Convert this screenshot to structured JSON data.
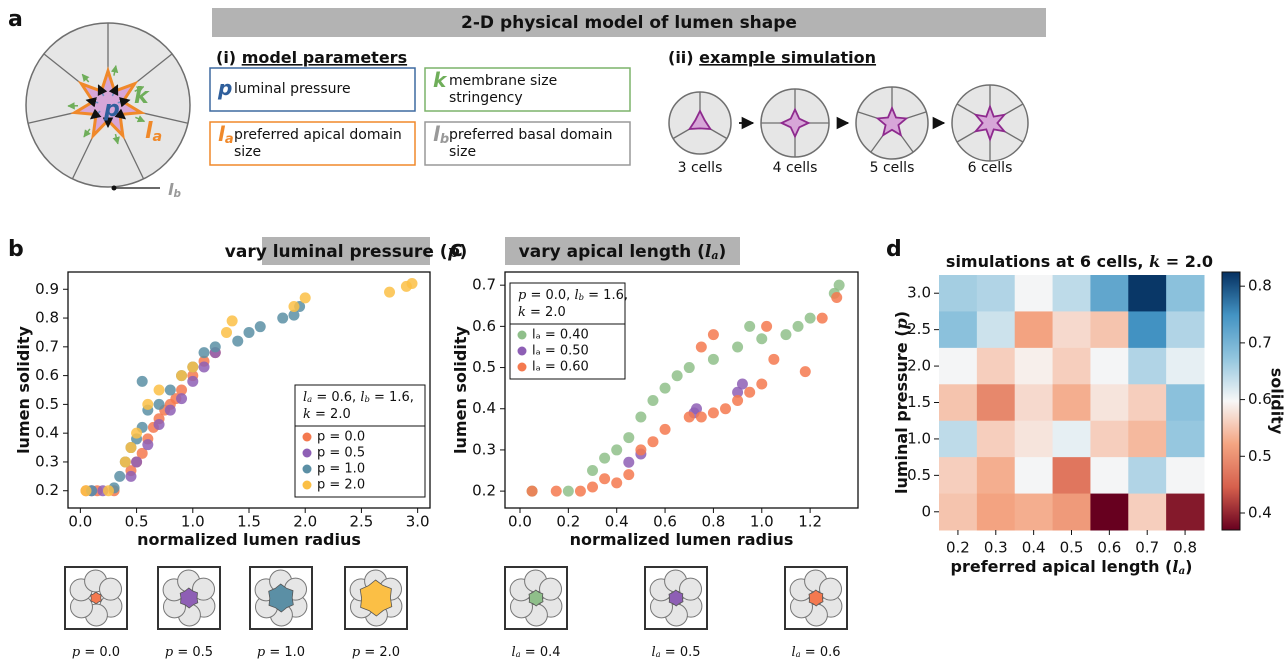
{
  "diagram": {
    "label": "a",
    "title": "2-D physical model of lumen shape",
    "params_heading": [
      {
        "text": "(i) "
      },
      {
        "text": "model parameters",
        "style": "underline"
      }
    ],
    "params": [
      {
        "symbol": [
          {
            "text": "p",
            "style": "bold-italic",
            "color": "#2f5f9c"
          }
        ],
        "lines": [
          "luminal pressure"
        ],
        "color": "#3e6aa0"
      },
      {
        "symbol": [
          {
            "text": "k",
            "style": "bold-italic",
            "color": "#6fae5a"
          }
        ],
        "lines": [
          "membrane size",
          "stringency"
        ],
        "color": "#7cb36a"
      },
      {
        "symbol": [
          {
            "text": "l",
            "style": "bold-italic",
            "color": "#f0892a"
          },
          {
            "text": "a",
            "style": "sub bold-italic",
            "color": "#f0892a"
          }
        ],
        "lines": [
          "preferred apical domain",
          "size"
        ],
        "color": "#f0892a"
      },
      {
        "symbol": [
          {
            "text": "l",
            "style": "bold-italic",
            "color": "#999999"
          },
          {
            "text": "b",
            "style": "sub bold-italic",
            "color": "#999999"
          }
        ],
        "lines": [
          "preferred basal domain",
          "size"
        ],
        "color": "#999999"
      }
    ],
    "sim_heading": [
      {
        "text": "(ii) "
      },
      {
        "text": "example simulation",
        "style": "underline"
      }
    ],
    "sim_steps": [
      "3 cells",
      "4 cells",
      "5 cells",
      "6 cells"
    ]
  },
  "chart_data": [
    {
      "type": "scatter",
      "label": "b",
      "title": [
        {
          "text": "vary luminal pressure ("
        },
        {
          "text": "p",
          "style": "italic serif"
        },
        {
          "text": ")"
        }
      ],
      "x_label": [
        {
          "text": "normalized lumen radius"
        }
      ],
      "y_label": [
        {
          "text": "lumen solidity"
        }
      ],
      "xlim": [
        -0.11,
        3.11
      ],
      "ylim": [
        0.14,
        0.96
      ],
      "xticks": [
        {
          "value": 0,
          "label": "0.0"
        },
        0.5,
        {
          "value": 1,
          "label": "1.0"
        },
        1.5,
        {
          "value": 2,
          "label": "2.0"
        },
        2.5,
        {
          "value": 3,
          "label": "3.0"
        }
      ],
      "yticks": [
        0.2,
        0.3,
        0.4,
        0.5,
        0.6,
        0.7,
        0.8,
        0.9
      ],
      "legend_position": "lower right",
      "legend_title": [
        [
          {
            "text": "l",
            "style": "italic serif"
          },
          {
            "text": "a",
            "style": "sub italic serif"
          },
          {
            "text": " = 0.6, "
          },
          {
            "text": "l",
            "style": "italic serif"
          },
          {
            "text": "b",
            "style": "sub italic serif"
          },
          {
            "text": " = 1.6,"
          }
        ],
        [
          {
            "text": "k",
            "style": "italic serif"
          },
          {
            "text": " = 2.0"
          }
        ]
      ],
      "series": [
        {
          "name": "p = 0.0",
          "color": "#f4794f",
          "x": [
            0.05,
            0.15,
            0.3,
            0.45,
            0.5,
            0.55,
            0.6,
            0.65,
            0.7,
            0.75,
            0.8,
            0.85,
            0.9,
            1.0,
            1.1,
            1.2
          ],
          "values": [
            0.2,
            0.2,
            0.2,
            0.27,
            0.3,
            0.33,
            0.38,
            0.42,
            0.45,
            0.48,
            0.5,
            0.52,
            0.55,
            0.6,
            0.65,
            0.68
          ]
        },
        {
          "name": "p = 0.5",
          "color": "#8e5fb5",
          "x": [
            0.1,
            0.2,
            0.45,
            0.5,
            0.6,
            0.7,
            0.8,
            0.9,
            1.0,
            1.1,
            1.2
          ],
          "values": [
            0.2,
            0.2,
            0.25,
            0.3,
            0.36,
            0.43,
            0.48,
            0.52,
            0.58,
            0.63,
            0.68
          ]
        },
        {
          "name": "p = 1.0",
          "color": "#5b8fa5",
          "x": [
            0.1,
            0.3,
            0.35,
            0.4,
            0.45,
            0.5,
            0.55,
            0.6,
            0.55,
            0.7,
            0.8,
            0.9,
            1.0,
            1.1,
            1.2,
            1.4,
            1.5,
            1.6,
            1.8,
            1.9,
            1.95
          ],
          "values": [
            0.2,
            0.21,
            0.25,
            0.3,
            0.35,
            0.38,
            0.42,
            0.48,
            0.58,
            0.5,
            0.55,
            0.6,
            0.63,
            0.68,
            0.7,
            0.72,
            0.75,
            0.77,
            0.8,
            0.81,
            0.84
          ]
        },
        {
          "name": "p = 2.0",
          "color": "#fbbf45",
          "x": [
            0.05,
            0.25,
            0.4,
            0.45,
            0.5,
            0.6,
            0.7,
            0.9,
            1.0,
            1.3,
            1.35,
            1.9,
            2.0,
            2.75,
            2.9,
            2.95
          ],
          "values": [
            0.2,
            0.2,
            0.3,
            0.35,
            0.4,
            0.5,
            0.55,
            0.6,
            0.63,
            0.75,
            0.79,
            0.84,
            0.87,
            0.89,
            0.91,
            0.92
          ]
        }
      ],
      "thumbnails": [
        [
          {
            "text": "p",
            "style": "italic serif"
          },
          {
            "text": " = 0.0"
          }
        ],
        [
          {
            "text": "p",
            "style": "italic serif"
          },
          {
            "text": " = 0.5"
          }
        ],
        [
          {
            "text": "p",
            "style": "italic serif"
          },
          {
            "text": " = 1.0"
          }
        ],
        [
          {
            "text": "p",
            "style": "italic serif"
          },
          {
            "text": " = 2.0"
          }
        ]
      ]
    },
    {
      "type": "scatter",
      "label": "c",
      "title": [
        {
          "text": "vary apical length ("
        },
        {
          "text": "l",
          "style": "italic serif"
        },
        {
          "text": "a",
          "style": "sub italic serif"
        },
        {
          "text": ")"
        }
      ],
      "x_label": [
        {
          "text": "normalized lumen radius"
        }
      ],
      "y_label": [
        {
          "text": "lumen solidity"
        }
      ],
      "xlim": [
        -0.062,
        1.398
      ],
      "ylim": [
        0.159,
        0.732
      ],
      "xticks": [
        {
          "value": 0,
          "label": "0.0"
        },
        0.2,
        0.4,
        0.6,
        0.8,
        {
          "value": 1,
          "label": "1.0"
        },
        1.2
      ],
      "yticks": [
        0.2,
        0.3,
        0.4,
        0.5,
        0.6,
        0.7
      ],
      "legend_position": "upper left",
      "legend_title": [
        [
          {
            "text": "p",
            "style": "italic serif"
          },
          {
            "text": " = 0.0, "
          },
          {
            "text": "l",
            "style": "italic serif"
          },
          {
            "text": "b",
            "style": "sub italic serif"
          },
          {
            "text": " = 1.6,"
          }
        ],
        [
          {
            "text": "k",
            "style": "italic serif"
          },
          {
            "text": " = 2.0"
          }
        ]
      ],
      "series": [
        {
          "name": "lₐ = 0.40",
          "color": "#8fbf8a",
          "x": [
            0.05,
            0.2,
            0.3,
            0.35,
            0.4,
            0.45,
            0.5,
            0.55,
            0.6,
            0.65,
            0.7,
            0.8,
            0.9,
            0.95,
            1.0,
            1.1,
            1.15,
            1.2,
            1.3,
            1.32
          ],
          "values": [
            0.2,
            0.2,
            0.25,
            0.28,
            0.3,
            0.33,
            0.38,
            0.42,
            0.45,
            0.48,
            0.5,
            0.52,
            0.55,
            0.6,
            0.57,
            0.58,
            0.6,
            0.62,
            0.68,
            0.7
          ]
        },
        {
          "name": "lₐ = 0.50",
          "color": "#8e5fb5",
          "x": [
            0.45,
            0.5,
            0.72,
            0.73,
            0.9,
            0.92
          ],
          "values": [
            0.27,
            0.29,
            0.39,
            0.4,
            0.44,
            0.46
          ]
        },
        {
          "name": "lₐ = 0.60",
          "color": "#f4794f",
          "x": [
            0.05,
            0.15,
            0.25,
            0.3,
            0.35,
            0.4,
            0.45,
            0.5,
            0.55,
            0.6,
            0.7,
            0.75,
            0.8,
            0.85,
            0.9,
            0.95,
            1.0,
            1.05,
            0.8,
            0.75,
            1.25,
            1.31,
            1.02,
            1.18
          ],
          "values": [
            0.2,
            0.2,
            0.2,
            0.21,
            0.23,
            0.22,
            0.24,
            0.3,
            0.32,
            0.35,
            0.38,
            0.38,
            0.39,
            0.4,
            0.42,
            0.44,
            0.46,
            0.52,
            0.58,
            0.55,
            0.62,
            0.67,
            0.6,
            0.49
          ]
        }
      ],
      "thumbnails": [
        [
          {
            "text": "l",
            "style": "italic serif"
          },
          {
            "text": "a",
            "style": "sub italic serif"
          },
          {
            "text": " = 0.4"
          }
        ],
        [
          {
            "text": "l",
            "style": "italic serif"
          },
          {
            "text": "a",
            "style": "sub italic serif"
          },
          {
            "text": " = 0.5"
          }
        ],
        [
          {
            "text": "l",
            "style": "italic serif"
          },
          {
            "text": "a",
            "style": "sub italic serif"
          },
          {
            "text": " = 0.6"
          }
        ]
      ]
    },
    {
      "type": "heatmap",
      "label": "d",
      "title": [
        {
          "text": "simulations at 6 cells, "
        },
        {
          "text": "k",
          "style": "italic serif"
        },
        {
          "text": " = 2.0"
        }
      ],
      "x_label": [
        {
          "text": "preferred apical length ("
        },
        {
          "text": "l",
          "style": "italic serif"
        },
        {
          "text": "a",
          "style": "sub italic serif"
        },
        {
          "text": ")"
        }
      ],
      "y_label": [
        {
          "text": "luminal pressure ("
        },
        {
          "text": "p",
          "style": "italic serif"
        },
        {
          "text": ")"
        }
      ],
      "colorbar_label": "solidity",
      "x": [
        0.2,
        0.3,
        0.4,
        0.5,
        0.6,
        0.7,
        0.8
      ],
      "y": [
        {
          "value": 3,
          "label": "3.0"
        },
        2.5,
        {
          "value": 2,
          "label": "2.0"
        },
        1.5,
        {
          "value": 1,
          "label": "1.0"
        },
        0.5,
        0
      ],
      "z": [
        [
          0.66,
          0.65,
          0.6,
          0.64,
          0.72,
          0.82,
          0.68
        ],
        [
          0.68,
          0.63,
          0.52,
          0.57,
          0.55,
          0.75,
          0.65
        ],
        [
          0.6,
          0.56,
          0.59,
          0.56,
          0.6,
          0.65,
          0.61
        ],
        [
          0.55,
          0.49,
          0.57,
          0.53,
          0.58,
          0.56,
          0.68
        ],
        [
          0.64,
          0.56,
          0.58,
          0.61,
          0.56,
          0.54,
          0.67
        ],
        [
          0.56,
          0.53,
          0.6,
          0.47,
          0.6,
          0.65,
          0.6
        ],
        [
          0.55,
          0.52,
          0.53,
          0.51,
          0.37,
          0.56,
          0.39
        ]
      ],
      "clim": [
        0.37,
        0.825
      ],
      "cticks": [
        0.4,
        0.5,
        0.6,
        0.7,
        0.8
      ],
      "colors": [
        "#67001f",
        "#d6604d",
        "#f4a582",
        "#f7f7f7",
        "#92c5de",
        "#4393c3",
        "#053061"
      ]
    }
  ]
}
